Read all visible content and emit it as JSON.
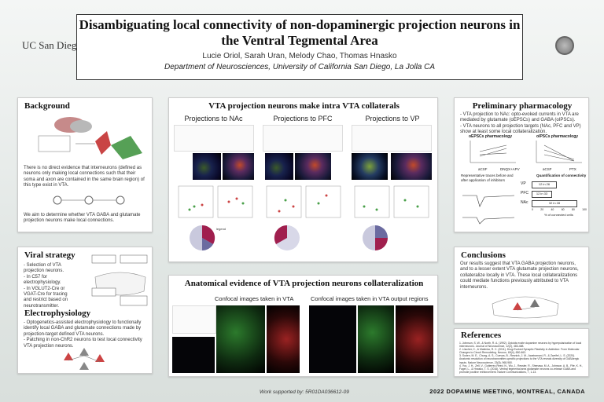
{
  "header": {
    "title": "Disambiguating local connectivity of non-dopaminergic projection neurons in the Ventral Tegmental Area",
    "authors": "Lucie Oriol, Sarah Uran, Melody Chao, Thomas Hnasko",
    "department": "Department of Neurosciences, University of California San Diego, La Jolla CA",
    "institution_logo": "UC San Diego"
  },
  "background": {
    "title": "Background",
    "body1": "There is no direct evidence that interneurons (defined as neurons only making local connections such that their soma and axon are contained in the same brain region) of this type exist in VTA.",
    "body2": "We aim to determine whether VTA GABA and glutamate projection neurons make local connections."
  },
  "viral": {
    "title": "Viral strategy",
    "items": [
      "- Selection of VTA projection neurons.",
      "- In C57 for electrophysiology.",
      "- In VGLUT2-Cre or VGAT-Cre for tracing and restrict based on neurotransmitter."
    ]
  },
  "ephys": {
    "title": "Electrophysiology",
    "items": [
      "- Optogenetics-assisted electrophysiology to functionally identify local GABA and glutamate connections made by projection-target defined VTA neurons.",
      "- Patching in non-ChR2 neurons to test local connectivity VTA projection neurons."
    ]
  },
  "collaterals": {
    "title": "VTA projection neurons make intra VTA collaterals",
    "columns": [
      "Projections to NAc",
      "Projections to PFC",
      "Projections to VP"
    ]
  },
  "anatomical": {
    "title": "Anatomical evidence of VTA projection neurons collateralization",
    "sub_left": "Confocal images taken in VTA",
    "sub_right": "Confocal images taken in VTA output regions"
  },
  "pharm": {
    "title": "Preliminary pharmacology",
    "items": [
      "- VTA projection to NAc: opto-evoked currents in VTA are mediated by glutamate (oEPSCs) and GABA (oIPSCs).",
      "- VTA neurons to all projection targets (NAc, PFC and VP) show at least some local collateralization."
    ],
    "chart_left_title": "oEPSCs pharmacology",
    "chart_right_title": "oIPSCs pharmacology",
    "chart_left_cats": [
      "aCSF",
      "DNQX+APV"
    ],
    "chart_right_cats": [
      "aCSF",
      "PTX"
    ],
    "trace_label": "Representative traces before and after application of inhibitors",
    "bar_title": "Quantification of connectivity",
    "bars": [
      {
        "label": "VP",
        "text": "12 in 26"
      },
      {
        "label": "PFC",
        "text": "12 in 33"
      },
      {
        "label": "NAc",
        "text": "32 in 28"
      }
    ],
    "bar_axis": [
      "0",
      "20",
      "40",
      "60",
      "80",
      "100"
    ],
    "bar_xlabel": "% of connected cells",
    "y_label": "Peak amplitude (pA)"
  },
  "conclusions": {
    "title": "Conclusions",
    "body": "Our results suggest that VTA GABA projection neurons, and to a lesser extent VTA glutamate projection neurons, collateralize locally in VTA. These local collateralizations could mediate functions previously attributed to VTA interneurons."
  },
  "references": {
    "title": "References",
    "items": [
      "1. Johnson, S. W., & North, R. A. (1992). Opioids excite dopamine neurons by hyperpolarization of local interneurons. Journal of Neuroscience, 12(2), 483-488.",
      "2. Lüscher, C., & Malenka, R. C. (2011). Drug-Evoked Synaptic Plasticity in Addiction: From Molecular Changes to Circuit Remodeling. Neuron, 69(4), 650-663.",
      "3. Soden, M. E., Chung, A. S., Cuevas, B., Resnick, J. M., Awatramani, R., & Zweifel, L. S. (2020). Anatomic resolution of neurotransmitter-specific projections to the VTA reveals diversity of GABAergic inputs. Nature Neuroscience, 23(8), 968-980.",
      "4. Yoo, J. H., Zell, V., Gutierrez-Reed, N., Wu, J., Ressler, R., Shenasa, M. A., Johnson, A. B., Fife, K. H., Faget, L., & Hnasko, T. S. (2016). Ventral tegmental area glutamate neurons co-release GABA and promote positive reinforcement. Nature Communications, 7, 1-13."
    ]
  },
  "footer": {
    "support": "Work supported by: 5R01DA036612-09",
    "meeting": "2022 DOPAMINE MEETING, MONTREAL, CANADA"
  }
}
